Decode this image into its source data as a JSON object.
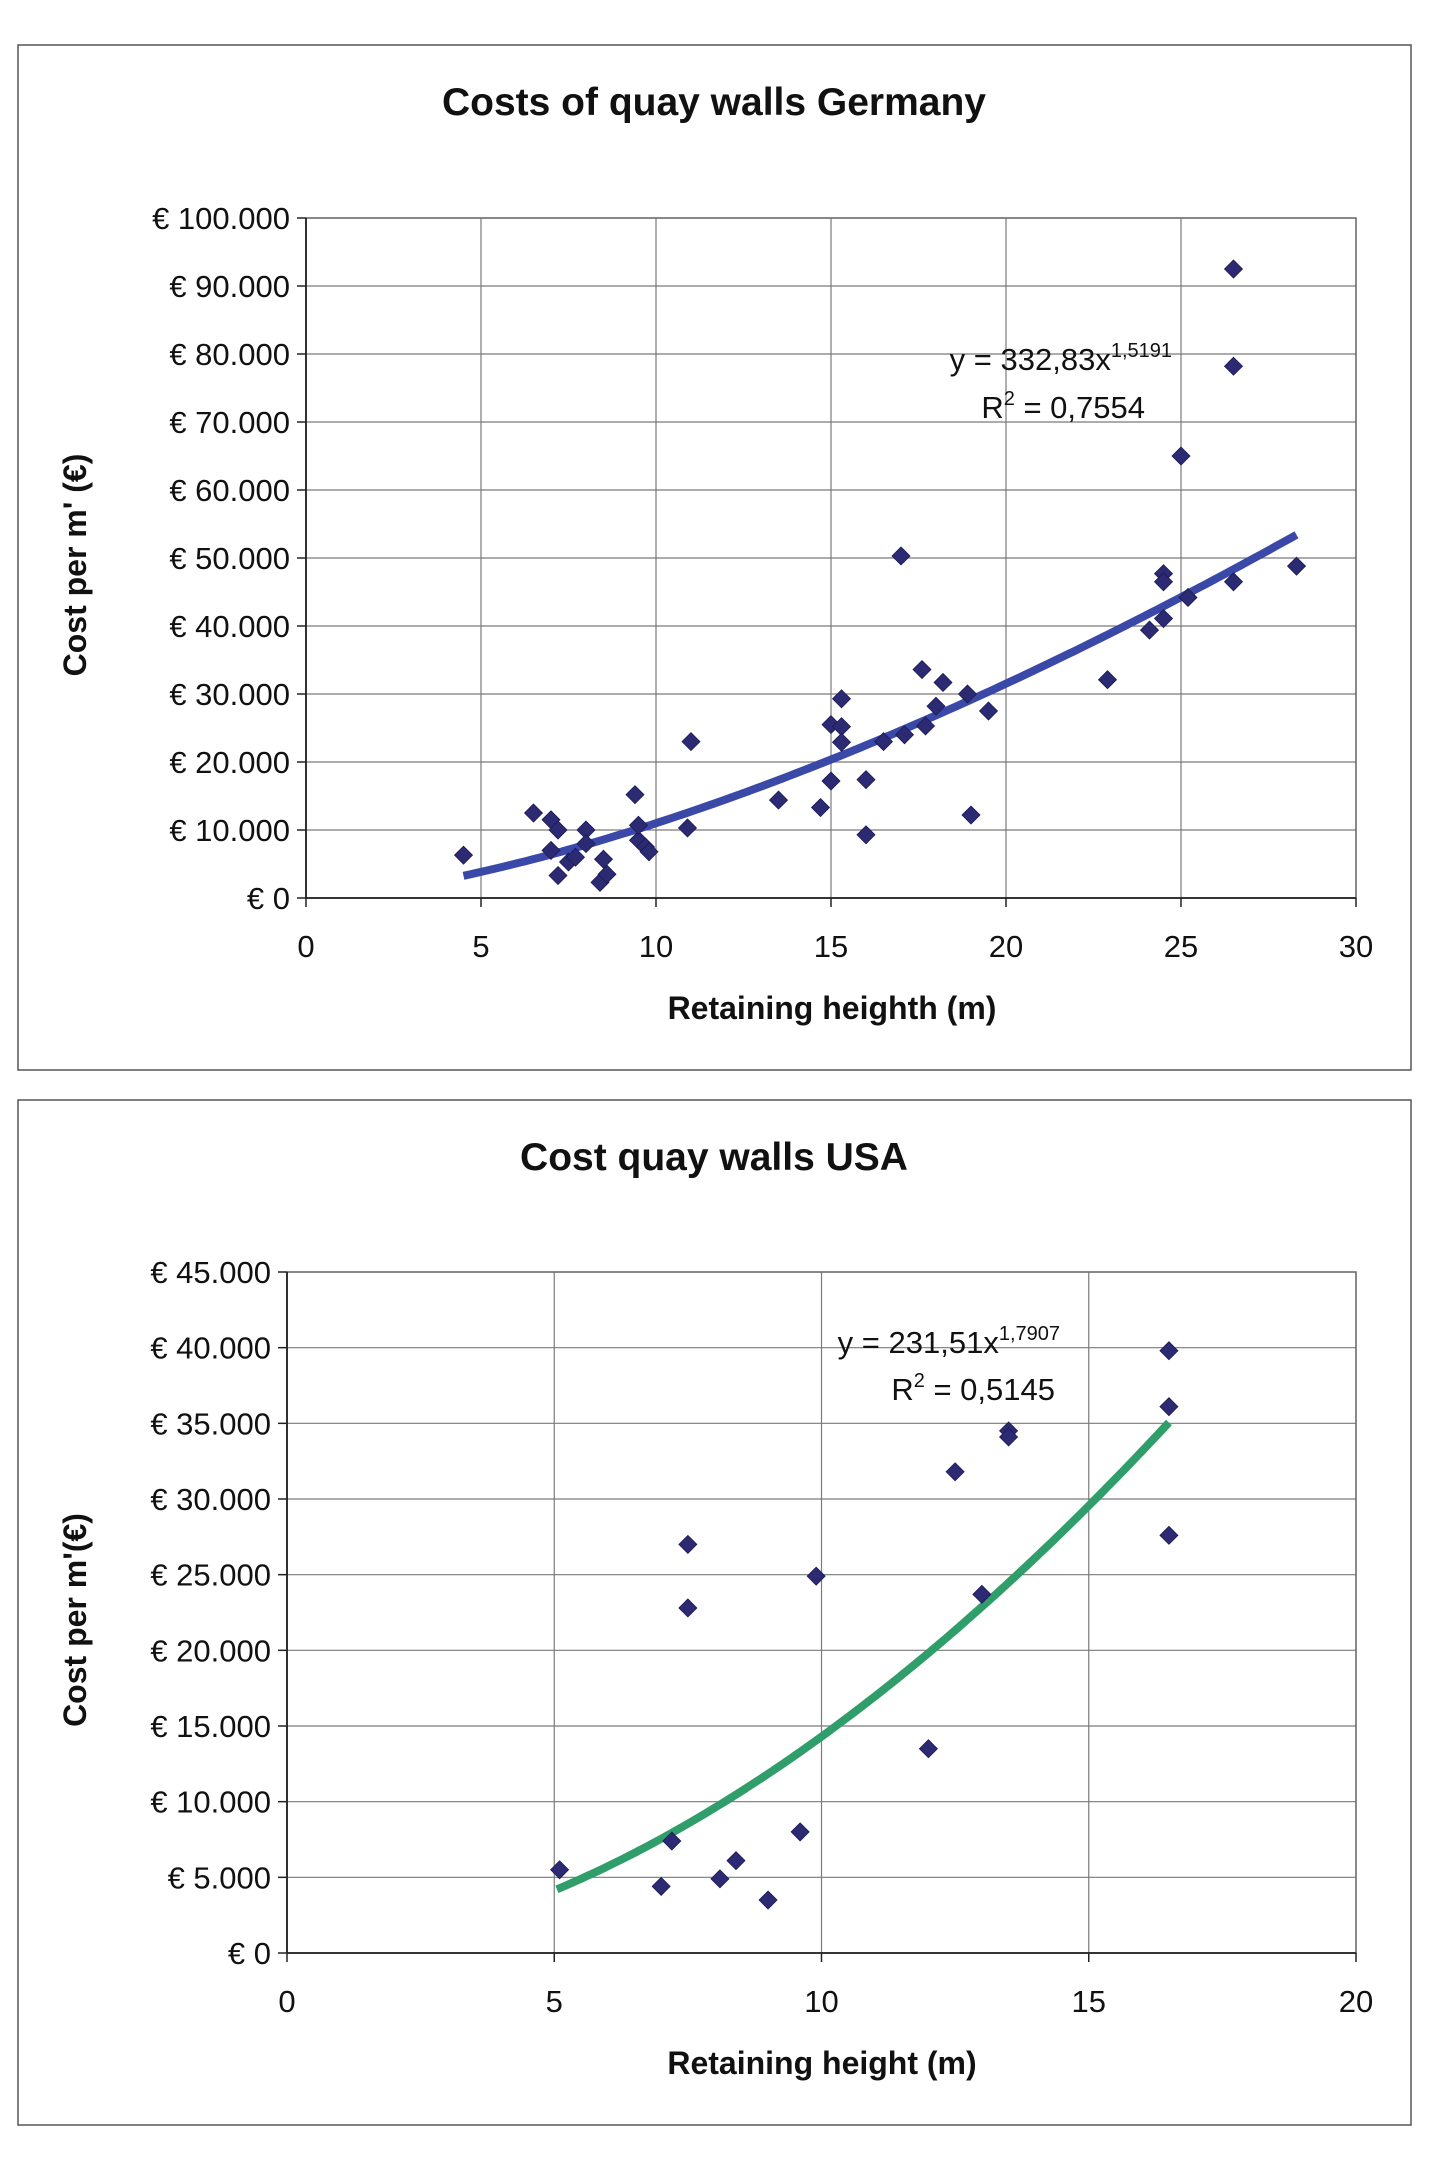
{
  "chart_data": [
    {
      "type": "scatter",
      "title": "Costs of quay walls Germany",
      "xlabel": "Retaining heighth (m)",
      "ylabel": "Cost per m' (€)",
      "xlim": [
        0,
        30
      ],
      "ylim": [
        0,
        100000
      ],
      "xticks": [
        0,
        5,
        10,
        15,
        20,
        25,
        30
      ],
      "xtick_labels": [
        "0",
        "5",
        "10",
        "15",
        "20",
        "25",
        "30"
      ],
      "yticks": [
        0,
        10000,
        20000,
        30000,
        40000,
        50000,
        60000,
        70000,
        80000,
        90000,
        100000
      ],
      "ytick_labels": [
        "€ 0",
        "€ 10.000",
        "€ 20.000",
        "€ 30.000",
        "€ 40.000",
        "€ 50.000",
        "€ 60.000",
        "€ 70.000",
        "€ 80.000",
        "€ 90.000",
        "€ 100.000"
      ],
      "grid": true,
      "marker_color": "#2b2a72",
      "trend_color": "#3a48a8",
      "trendline": {
        "type": "power",
        "a": 332.83,
        "b": 1.5191,
        "x_range": [
          4.5,
          28.3
        ],
        "eq_prefix": "y = 332,83x",
        "eq_exponent": "1,5191",
        "r2_prefix": "R",
        "r2_exponent": "2",
        "r2_suffix": " = 0,7554",
        "label_position": "top-right"
      },
      "points": [
        [
          4.5,
          6300
        ],
        [
          6.5,
          12500
        ],
        [
          7.0,
          11500
        ],
        [
          7.0,
          7000
        ],
        [
          7.2,
          10000
        ],
        [
          7.2,
          3300
        ],
        [
          7.5,
          5300
        ],
        [
          7.7,
          6000
        ],
        [
          8.0,
          10000
        ],
        [
          8.0,
          8000
        ],
        [
          8.4,
          2300
        ],
        [
          8.5,
          5700
        ],
        [
          8.6,
          3500
        ],
        [
          9.4,
          15200
        ],
        [
          9.5,
          8500
        ],
        [
          9.5,
          10700
        ],
        [
          9.7,
          7500
        ],
        [
          9.8,
          6800
        ],
        [
          10.9,
          10300
        ],
        [
          11.0,
          23000
        ],
        [
          13.5,
          14400
        ],
        [
          14.7,
          13300
        ],
        [
          15.0,
          25500
        ],
        [
          15.0,
          17200
        ],
        [
          15.3,
          29300
        ],
        [
          15.3,
          25200
        ],
        [
          15.3,
          22900
        ],
        [
          16.0,
          17400
        ],
        [
          16.0,
          9300
        ],
        [
          16.5,
          23000
        ],
        [
          17.0,
          50300
        ],
        [
          17.1,
          24000
        ],
        [
          17.6,
          33600
        ],
        [
          17.7,
          25300
        ],
        [
          18.0,
          28200
        ],
        [
          18.2,
          31700
        ],
        [
          18.9,
          30000
        ],
        [
          19.0,
          12200
        ],
        [
          19.5,
          27500
        ],
        [
          22.9,
          32100
        ],
        [
          24.1,
          39400
        ],
        [
          24.5,
          47700
        ],
        [
          24.5,
          46500
        ],
        [
          24.5,
          41100
        ],
        [
          25.0,
          65000
        ],
        [
          25.2,
          44200
        ],
        [
          26.5,
          92500
        ],
        [
          26.5,
          78200
        ],
        [
          26.5,
          46500
        ],
        [
          28.3,
          48800
        ]
      ]
    },
    {
      "type": "scatter",
      "title": "Cost quay walls USA",
      "xlabel": "Retaining height (m)",
      "ylabel": "Cost per m'(€)",
      "xlim": [
        0,
        20
      ],
      "ylim": [
        0,
        45000
      ],
      "xticks": [
        0,
        5,
        10,
        15,
        20
      ],
      "xtick_labels": [
        "0",
        "5",
        "10",
        "15",
        "20"
      ],
      "yticks": [
        0,
        5000,
        10000,
        15000,
        20000,
        25000,
        30000,
        35000,
        40000,
        45000
      ],
      "ytick_labels": [
        "€ 0",
        "€ 5.000",
        "€ 10.000",
        "€ 15.000",
        "€ 20.000",
        "€ 25.000",
        "€ 30.000",
        "€ 35.000",
        "€ 40.000",
        "€ 45.000"
      ],
      "grid": true,
      "marker_color": "#2b2a72",
      "trend_color": "#2f9e6a",
      "trendline": {
        "type": "power",
        "a": 231.51,
        "b": 1.7907,
        "x_range": [
          5.05,
          16.5
        ],
        "eq_prefix": "y = 231,51x",
        "eq_exponent": "1,7907",
        "r2_prefix": "R",
        "r2_exponent": "2",
        "r2_suffix": " = 0,5145",
        "label_position": "top-right"
      },
      "points": [
        [
          5.1,
          5500
        ],
        [
          7.0,
          4400
        ],
        [
          7.2,
          7400
        ],
        [
          7.5,
          27000
        ],
        [
          7.5,
          22800
        ],
        [
          8.1,
          4900
        ],
        [
          8.4,
          6100
        ],
        [
          9.0,
          3500
        ],
        [
          9.6,
          8000
        ],
        [
          9.9,
          24900
        ],
        [
          12.0,
          13500
        ],
        [
          12.5,
          31800
        ],
        [
          13.0,
          23700
        ],
        [
          13.5,
          34500
        ],
        [
          13.5,
          34100
        ],
        [
          16.5,
          39800
        ],
        [
          16.5,
          36100
        ],
        [
          16.5,
          27600
        ]
      ]
    }
  ]
}
